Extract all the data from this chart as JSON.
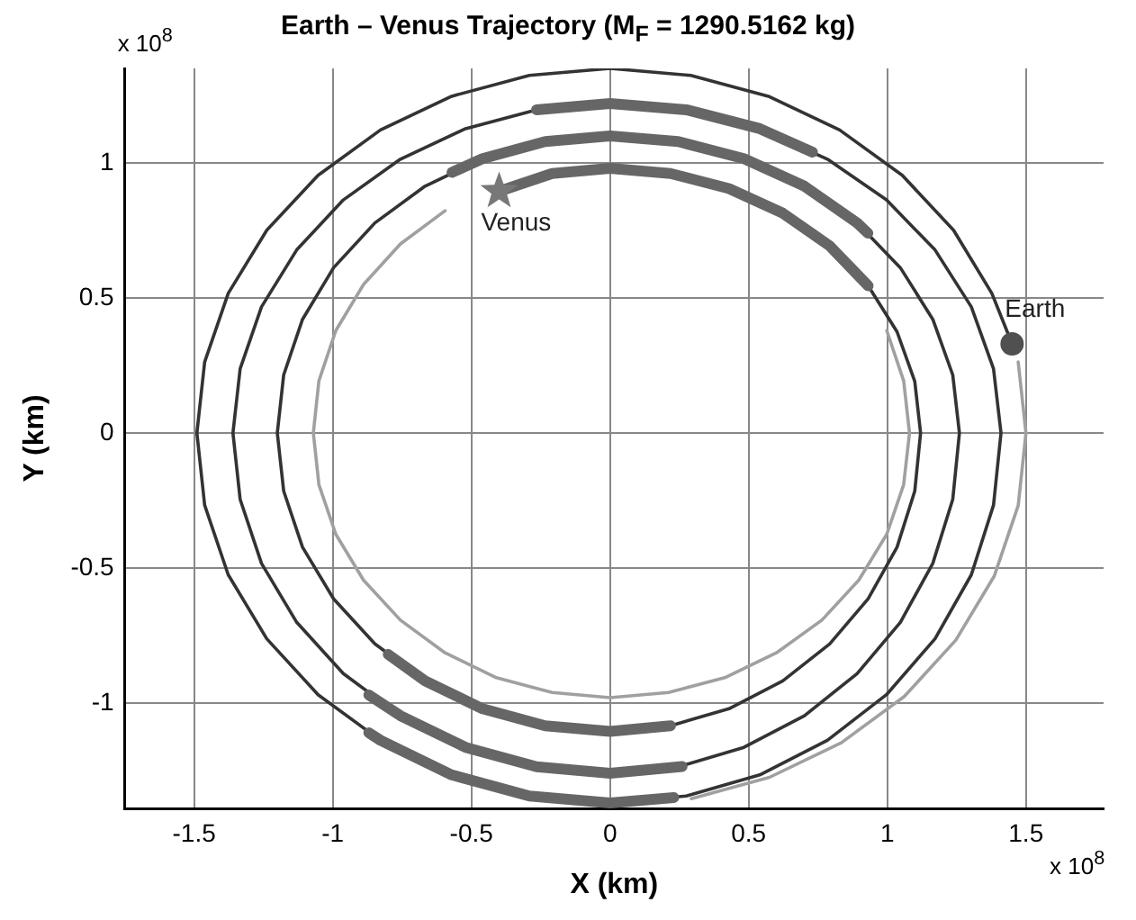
{
  "chart_data": {
    "type": "line",
    "title": "Earth – Venus Trajectory (M$_{F}$ = 1290.5162 kg)",
    "xlabel": "X (km)",
    "ylabel": "Y (km)",
    "annotations": [
      "x 10$^{8}$",
      "x 10$^{8}$"
    ],
    "xlim": [
      -1.75,
      1.78
    ],
    "ylim": [
      -1.39,
      1.35
    ],
    "xticks": [
      -1.5,
      -1,
      -0.5,
      0,
      0.5,
      1,
      1.5
    ],
    "yticks": [
      -1,
      -0.5,
      0,
      0.5,
      1
    ],
    "grid": true,
    "legend": false,
    "series": [
      {
        "color": "#a0a0a0",
        "x": [
          1.472,
          1.5,
          1.472,
          1.386,
          1.247,
          1.061,
          0.834,
          0.575,
          0.293,
          null,
          0.998,
          1.059,
          1.08,
          1.059,
          0.998,
          0.897,
          0.764,
          0.6,
          0.414,
          0.211,
          0,
          -0.209,
          -0.41,
          -0.595,
          -0.756,
          -0.889,
          -0.989,
          -1.05,
          -1.07,
          -1.05,
          -0.989,
          -0.889,
          -0.756,
          -0.595
        ],
        "values": [
          0.263,
          0,
          -0.269,
          -0.529,
          -0.767,
          -0.976,
          -1.147,
          -1.275,
          -1.354,
          null,
          0.379,
          0.193,
          0,
          -0.191,
          -0.375,
          -0.545,
          -0.693,
          -0.814,
          -0.906,
          -0.961,
          -0.98,
          -0.961,
          -0.906,
          -0.814,
          -0.693,
          -0.545,
          -0.375,
          -0.191,
          0,
          0.193,
          0.379,
          0.55,
          0.7,
          0.823
        ]
      },
      {
        "color": "#333333",
        "x": [
          1.45,
          1.377,
          1.239,
          1.054,
          0.828,
          0.571,
          0.291,
          0,
          -0.291,
          -0.571,
          -0.828,
          -1.053,
          -1.238,
          -1.377,
          -1.462,
          -1.49,
          -1.462,
          -1.377,
          -1.238,
          -1.053,
          -0.828,
          -0.571,
          -0.291,
          0,
          0.275,
          0.54,
          0.784,
          0.997,
          1.172,
          1.303,
          1.383,
          1.41,
          1.383,
          1.303,
          1.172,
          0.997,
          0.784,
          0.54,
          0.275,
          0,
          -0.265,
          -0.521,
          -0.756,
          -0.962,
          -1.13,
          -1.257,
          -1.334,
          -1.36,
          -1.334,
          -1.257,
          -1.13,
          -0.962,
          -0.756,
          -0.521,
          -0.265,
          0,
          0.246,
          0.483,
          0.701,
          0.891,
          1.047,
          1.164,
          1.236,
          1.26,
          1.236,
          1.164,
          1.047,
          0.891,
          0.701,
          0.483,
          0.246,
          0,
          -0.234,
          -0.46,
          -0.667,
          -0.848,
          -0.997,
          -1.109,
          -1.177,
          -1.2,
          -1.177,
          -1.109,
          -0.997,
          -0.848,
          -0.667,
          -0.46,
          -0.234,
          0,
          0.218,
          0.429,
          0.623,
          0.792,
          0.931,
          1.035,
          1.099,
          1.12,
          1.099,
          1.035,
          0.931,
          0.792,
          0.623,
          0.429,
          0.218,
          0,
          -0.209,
          -0.4
        ],
        "values": [
          0.33,
          0.517,
          0.751,
          0.954,
          1.122,
          1.247,
          1.324,
          1.35,
          1.324,
          1.247,
          1.122,
          0.954,
          0.751,
          0.517,
          0.263,
          0,
          -0.267,
          -0.525,
          -0.762,
          -0.969,
          -1.138,
          -1.266,
          -1.344,
          -1.37,
          -1.344,
          -1.266,
          -1.138,
          -0.969,
          -0.762,
          -0.525,
          -0.267,
          0,
          0.238,
          0.467,
          0.678,
          0.863,
          1.014,
          1.127,
          1.197,
          1.22,
          1.197,
          1.127,
          1.014,
          0.863,
          0.678,
          0.467,
          0.238,
          0,
          -0.246,
          -0.483,
          -0.701,
          -0.891,
          -1.047,
          -1.164,
          -1.236,
          -1.26,
          -1.236,
          -1.164,
          -1.047,
          -0.891,
          -0.701,
          -0.483,
          -0.246,
          0,
          0.215,
          0.421,
          0.612,
          0.778,
          0.914,
          1.016,
          1.079,
          1.1,
          1.079,
          1.016,
          0.914,
          0.778,
          0.612,
          0.421,
          0.215,
          0,
          -0.215,
          -0.423,
          -0.614,
          -0.781,
          -0.918,
          -1.021,
          -1.084,
          -1.105,
          -1.084,
          -1.021,
          -0.918,
          -0.781,
          -0.614,
          -0.423,
          -0.215,
          0,
          0.191,
          0.375,
          0.545,
          0.693,
          0.814,
          0.905,
          0.961,
          0.98,
          0.961,
          0.895
        ]
      },
      {
        "color": "#666666",
        "x": [
          -0.87,
          -0.828,
          -0.571,
          -0.291,
          0,
          0.23,
          null,
          -0.265,
          0,
          0.275,
          0.54,
          0.73,
          null,
          -0.87,
          -0.756,
          -0.521,
          -0.265,
          0,
          0.26,
          null,
          -0.57,
          -0.46,
          -0.234,
          0,
          0.246,
          0.483,
          0.701,
          0.891,
          0.93,
          null,
          -0.8,
          -0.667,
          -0.46,
          -0.234,
          0,
          0.218,
          null,
          -0.4,
          -0.209,
          0,
          0.218,
          0.429,
          0.623,
          0.792,
          0.931
        ],
        "values": [
          -1.11,
          -1.138,
          -1.266,
          -1.344,
          -1.37,
          -1.35,
          null,
          1.197,
          1.22,
          1.197,
          1.127,
          1.04,
          null,
          -0.97,
          -1.047,
          -1.164,
          -1.236,
          -1.26,
          -1.235,
          null,
          0.965,
          1.016,
          1.079,
          1.1,
          1.079,
          1.016,
          0.914,
          0.778,
          0.74,
          null,
          -0.82,
          -0.918,
          -1.021,
          -1.084,
          -1.105,
          -1.084,
          null,
          0.895,
          0.961,
          0.98,
          0.961,
          0.905,
          0.814,
          0.693,
          0.545
        ]
      },
      {
        "type": "scatter",
        "name": "Venus",
        "marker": "star",
        "color": "#787878",
        "x": [
          -0.4
        ],
        "values": [
          0.895
        ]
      },
      {
        "type": "scatter",
        "name": "Earth",
        "marker": "circle",
        "color": "#505050",
        "x": [
          1.45
        ],
        "values": [
          0.33
        ]
      }
    ]
  }
}
